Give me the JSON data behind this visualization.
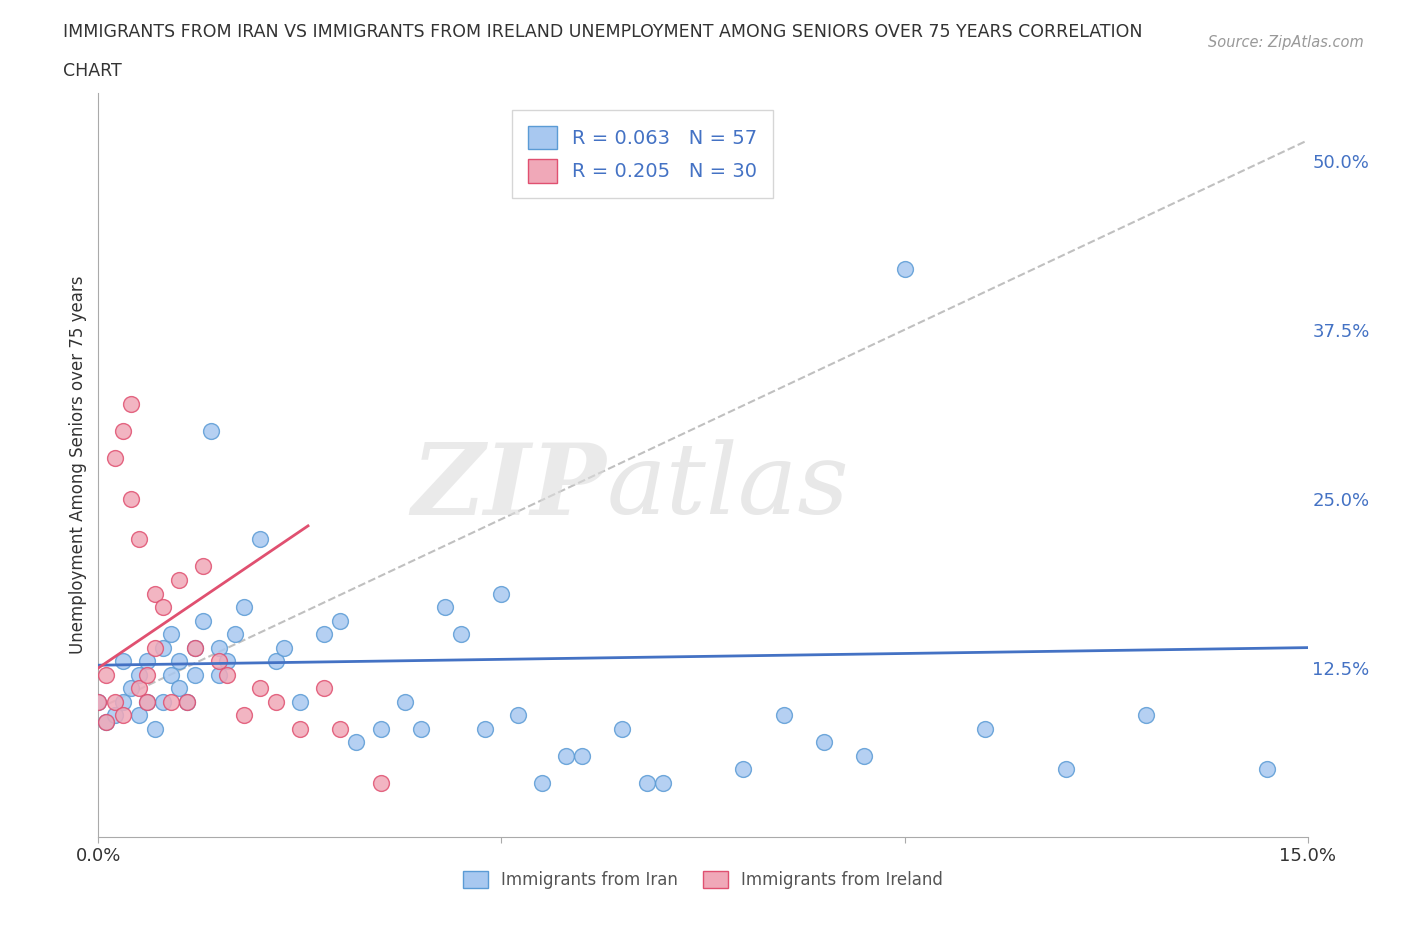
{
  "title_line1": "IMMIGRANTS FROM IRAN VS IMMIGRANTS FROM IRELAND UNEMPLOYMENT AMONG SENIORS OVER 75 YEARS CORRELATION",
  "title_line2": "CHART",
  "source": "Source: ZipAtlas.com",
  "ylabel": "Unemployment Among Seniors over 75 years",
  "xlim": [
    0.0,
    0.15
  ],
  "ylim": [
    0.0,
    0.55
  ],
  "iran_color": "#a8c8f0",
  "iran_edge_color": "#5b9bd5",
  "ireland_color": "#f0a8b8",
  "ireland_edge_color": "#e05070",
  "iran_line_color": "#4472c4",
  "ireland_line_color": "#e05070",
  "R_iran": 0.063,
  "N_iran": 57,
  "R_ireland": 0.205,
  "N_ireland": 30,
  "iran_scatter_x": [
    0.0,
    0.001,
    0.002,
    0.003,
    0.003,
    0.004,
    0.005,
    0.005,
    0.006,
    0.006,
    0.007,
    0.008,
    0.008,
    0.009,
    0.009,
    0.01,
    0.01,
    0.011,
    0.012,
    0.012,
    0.013,
    0.014,
    0.015,
    0.015,
    0.016,
    0.017,
    0.018,
    0.02,
    0.022,
    0.023,
    0.025,
    0.028,
    0.03,
    0.032,
    0.035,
    0.038,
    0.04,
    0.043,
    0.045,
    0.048,
    0.05,
    0.052,
    0.055,
    0.058,
    0.06,
    0.065,
    0.068,
    0.07,
    0.08,
    0.085,
    0.09,
    0.095,
    0.1,
    0.11,
    0.12,
    0.13,
    0.145
  ],
  "iran_scatter_y": [
    0.1,
    0.085,
    0.09,
    0.1,
    0.13,
    0.11,
    0.12,
    0.09,
    0.1,
    0.13,
    0.08,
    0.14,
    0.1,
    0.12,
    0.15,
    0.11,
    0.13,
    0.1,
    0.14,
    0.12,
    0.16,
    0.3,
    0.12,
    0.14,
    0.13,
    0.15,
    0.17,
    0.22,
    0.13,
    0.14,
    0.1,
    0.15,
    0.16,
    0.07,
    0.08,
    0.1,
    0.08,
    0.17,
    0.15,
    0.08,
    0.18,
    0.09,
    0.04,
    0.06,
    0.06,
    0.08,
    0.04,
    0.04,
    0.05,
    0.09,
    0.07,
    0.06,
    0.42,
    0.08,
    0.05,
    0.09,
    0.05
  ],
  "ireland_scatter_x": [
    0.0,
    0.001,
    0.001,
    0.002,
    0.002,
    0.003,
    0.003,
    0.004,
    0.004,
    0.005,
    0.005,
    0.006,
    0.006,
    0.007,
    0.007,
    0.008,
    0.009,
    0.01,
    0.011,
    0.012,
    0.013,
    0.015,
    0.016,
    0.018,
    0.02,
    0.022,
    0.025,
    0.028,
    0.03,
    0.035
  ],
  "ireland_scatter_y": [
    0.1,
    0.085,
    0.12,
    0.1,
    0.28,
    0.3,
    0.09,
    0.32,
    0.25,
    0.11,
    0.22,
    0.12,
    0.1,
    0.18,
    0.14,
    0.17,
    0.1,
    0.19,
    0.1,
    0.14,
    0.2,
    0.13,
    0.12,
    0.09,
    0.11,
    0.1,
    0.08,
    0.11,
    0.08,
    0.04
  ]
}
